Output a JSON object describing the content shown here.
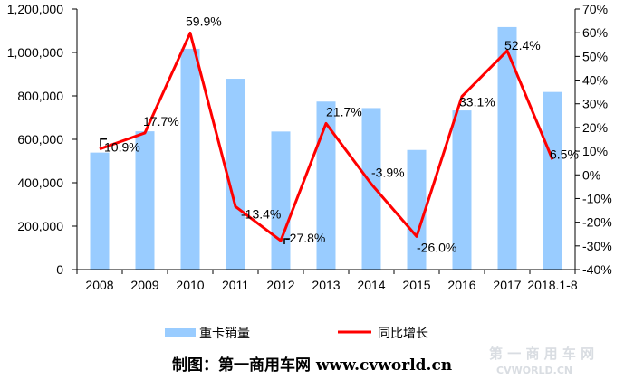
{
  "chart_data": {
    "type": "bar+line",
    "categories": [
      "2008",
      "2009",
      "2010",
      "2011",
      "2012",
      "2013",
      "2014",
      "2015",
      "2016",
      "2017",
      "2018.1-8"
    ],
    "bar_series": {
      "name": "重卡销量",
      "values": [
        539000,
        637000,
        1017000,
        879000,
        636000,
        774000,
        744000,
        551000,
        733000,
        1117000,
        818000
      ],
      "color": "#99ccff"
    },
    "line_series": {
      "name": "同比增长",
      "values": [
        10.9,
        17.7,
        59.9,
        -13.4,
        -27.8,
        21.7,
        -3.9,
        -26.0,
        33.1,
        52.4,
        6.5
      ],
      "labels": [
        "10.9%",
        "17.7%",
        "59.9%",
        "-13.4%",
        "-27.8%",
        "21.7%",
        "-3.9%",
        "-26.0%",
        "33.1%",
        "52.4%",
        "6.5%"
      ],
      "color": "#ff0000"
    },
    "y_left": {
      "min": 0,
      "max": 1200000,
      "ticks": [
        "0",
        "200,000",
        "400,000",
        "600,000",
        "800,000",
        "1,000,000",
        "1,200,000"
      ]
    },
    "y_right": {
      "min": -40,
      "max": 70,
      "ticks": [
        "-40%",
        "-30%",
        "-20%",
        "-10%",
        "0%",
        "10%",
        "20%",
        "30%",
        "40%",
        "50%",
        "60%",
        "70%"
      ]
    },
    "legend_position": "bottom",
    "grid": false
  },
  "credit": "制图：第一商用车网 www.cvworld.cn",
  "watermark": {
    "cn": "第 一 商 用 车 网",
    "en": "CVWORLD.CN"
  }
}
